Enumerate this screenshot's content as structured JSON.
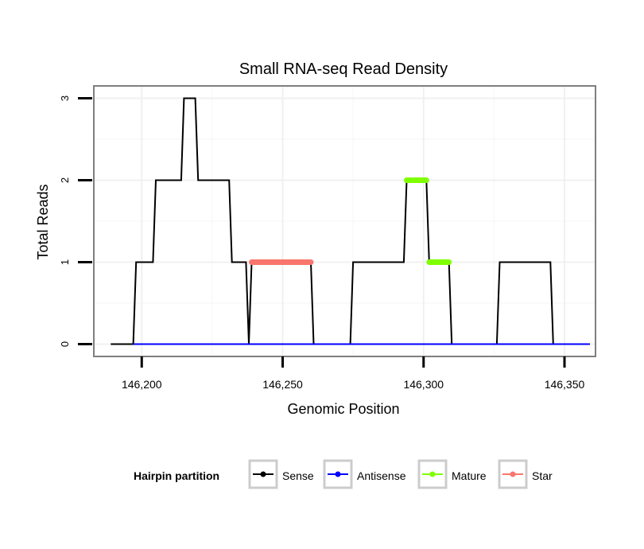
{
  "chart_data": {
    "type": "line",
    "title": "Small RNA-seq Read Density",
    "xlabel": "Genomic Position",
    "ylabel": "Total Reads",
    "xlim": [
      146183,
      146361
    ],
    "ylim": [
      -0.15,
      3.15
    ],
    "x_ticks": [
      146200,
      146250,
      146300,
      146350
    ],
    "x_tick_labels": [
      "146,200",
      "146,250",
      "146,300",
      "146,350"
    ],
    "y_ticks": [
      0,
      1,
      2,
      3
    ],
    "y_tick_labels": [
      "0",
      "1",
      "2",
      "3"
    ],
    "grid": true,
    "legend": {
      "title": "Hairpin partition",
      "position": "bottom",
      "entries": [
        "Sense",
        "Antisense",
        "Mature",
        "Star"
      ]
    },
    "series": [
      {
        "name": "Sense",
        "color": "#000000",
        "kind": "line",
        "x": [
          146189,
          146197,
          146198,
          146204,
          146205,
          146214,
          146215,
          146219,
          146220,
          146231,
          146232,
          146237,
          146238,
          146239,
          146260,
          146261,
          146274,
          146275,
          146293,
          146294,
          146301,
          146302,
          146309,
          146310,
          146326,
          146327,
          146345,
          146346,
          146359
        ],
        "y": [
          0,
          0,
          1,
          1,
          2,
          2,
          3,
          3,
          2,
          2,
          1,
          1,
          0,
          1,
          1,
          0,
          0,
          1,
          1,
          2,
          2,
          1,
          1,
          0,
          0,
          1,
          1,
          0,
          0
        ]
      },
      {
        "name": "Antisense",
        "color": "#0000ff",
        "kind": "line",
        "x": [
          146197,
          146359
        ],
        "y": [
          0,
          0
        ]
      },
      {
        "name": "Mature",
        "color": "#7fff00",
        "kind": "segments",
        "segments": [
          {
            "x0": 146294,
            "x1": 146301,
            "y": 2
          },
          {
            "x0": 146302,
            "x1": 146309,
            "y": 1
          }
        ]
      },
      {
        "name": "Star",
        "color": "#f8766d",
        "kind": "segments",
        "segments": [
          {
            "x0": 146239,
            "x1": 146260,
            "y": 1
          }
        ]
      }
    ]
  }
}
